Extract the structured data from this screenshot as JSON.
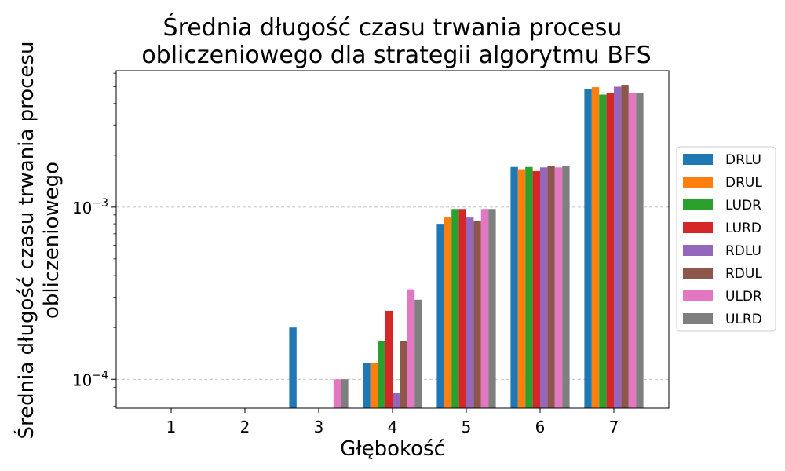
{
  "chart_data": {
    "type": "bar",
    "title_lines": [
      "Średnia długość czasu trwania procesu",
      "obliczeniowego dla strategii algorytmu BFS"
    ],
    "xlabel": "Głębokość",
    "ylabel_lines": [
      "Średnia długość czasu trwania procesu",
      "obliczeniowego"
    ],
    "yscale": "log",
    "ylim": [
      6.8e-05,
      0.0062
    ],
    "categories": [
      "1",
      "2",
      "3",
      "4",
      "5",
      "6",
      "7"
    ],
    "y_ticks": [
      {
        "value": 0.0001,
        "base": "10",
        "exp": "−4"
      },
      {
        "value": 0.001,
        "base": "10",
        "exp": "−3"
      }
    ],
    "grid": "y-major-dashed",
    "legend_position": "center-right",
    "series": [
      {
        "name": "DRLU",
        "color": "#1f77b4",
        "values": [
          null,
          null,
          0.0002,
          0.000125,
          0.0008,
          0.00171,
          0.00483
        ]
      },
      {
        "name": "DRUL",
        "color": "#ff7f0e",
        "values": [
          null,
          null,
          null,
          0.000125,
          0.00087,
          0.00166,
          0.00497
        ]
      },
      {
        "name": "LUDR",
        "color": "#2ca02c",
        "values": [
          null,
          null,
          null,
          0.000167,
          0.000975,
          0.00171,
          0.0045
        ]
      },
      {
        "name": "LURD",
        "color": "#d62728",
        "values": [
          null,
          null,
          null,
          0.00025,
          0.000975,
          0.00162,
          0.0046
        ]
      },
      {
        "name": "RDLU",
        "color": "#9467bd",
        "values": [
          null,
          null,
          null,
          8.3e-05,
          0.00087,
          0.0017,
          0.005
        ]
      },
      {
        "name": "RDUL",
        "color": "#8c564b",
        "values": [
          null,
          null,
          null,
          0.000167,
          0.00083,
          0.00173,
          0.00513
        ]
      },
      {
        "name": "ULDR",
        "color": "#e377c2",
        "values": [
          null,
          null,
          0.0001,
          0.000333,
          0.000975,
          0.0017,
          0.0046
        ]
      },
      {
        "name": "ULRD",
        "color": "#7f7f7f",
        "values": [
          null,
          null,
          0.0001,
          0.00029,
          0.000975,
          0.00173,
          0.0046
        ]
      }
    ]
  }
}
